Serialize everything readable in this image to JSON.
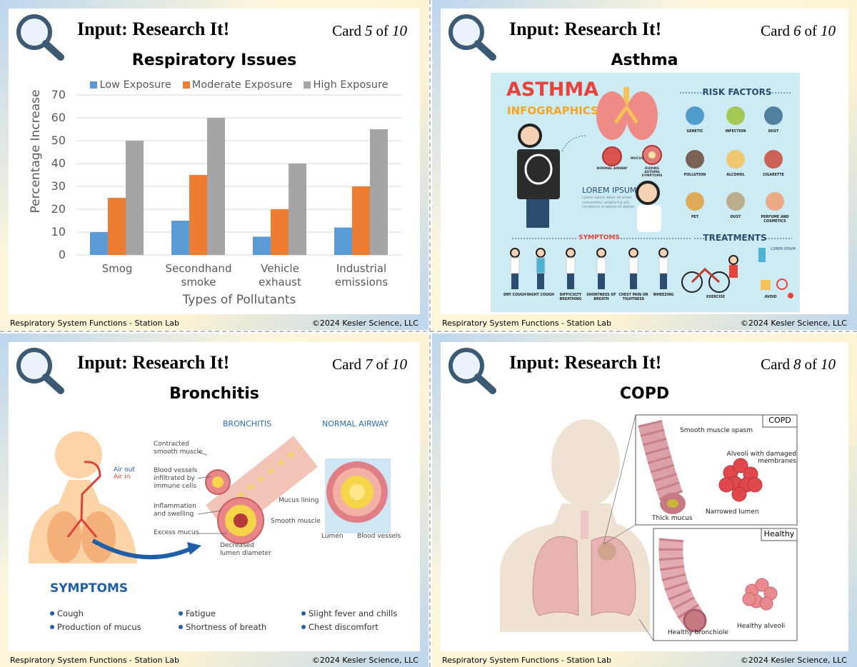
{
  "cards": [
    {
      "header": "Input: Research It!",
      "card_label": {
        "word": "Card",
        "number": "5",
        "of": "of",
        "total": "10"
      },
      "title": "Respiratory Issues",
      "chart_data": {
        "type": "bar",
        "categories": [
          "Smog",
          "Secondhand smoke",
          "Vehicle exhaust",
          "Industrial emissions"
        ],
        "series": [
          {
            "name": "Low Exposure",
            "color": "#5b9bd5",
            "values": [
              10,
              15,
              8,
              12
            ]
          },
          {
            "name": "Moderate Exposure",
            "color": "#ed7d31",
            "values": [
              25,
              35,
              20,
              30
            ]
          },
          {
            "name": "High Exposure",
            "color": "#a5a5a5",
            "values": [
              50,
              60,
              40,
              55
            ]
          }
        ],
        "ylim": [
          0,
          70
        ],
        "yticks": [
          0,
          10,
          20,
          30,
          40,
          50,
          60,
          70
        ],
        "ylabel": "Percentage Increase",
        "xlabel": "Types of Pollutants",
        "grid": true,
        "legend": "top"
      },
      "footer": {
        "left": "Respiratory System Functions - Station Lab",
        "right": "©2024 Kesler Science, LLC"
      }
    },
    {
      "header": "Input: Research It!",
      "card_label": {
        "word": "Card",
        "number": "6",
        "of": "of",
        "total": "10"
      },
      "title": "Asthma",
      "infographic": {
        "title": [
          "ASTHMA",
          "INFOGRAPHICS"
        ],
        "airway": [
          "NORMAL AIRWAY",
          "MUCUS",
          "DURING ASTHMA SYMPTOMS"
        ],
        "lorem_heading": "LOREM IPSUM",
        "lorem_text": "Lorem ipsum dolor sit amet, consectetur adipiscing elit, incididunt ut labore et dolore",
        "risk_heading": "RISK FACTORS",
        "risk_factors": [
          "GENETIC",
          "INFECTION",
          "DUST",
          "POLLUTION",
          "ALCOHOL",
          "CIGARETTE",
          "PET",
          "DUST",
          "PERFUME AND COSMETICS"
        ],
        "symptoms_heading": "SYMPTOMS",
        "symptoms": [
          "DRY COUGH",
          "NIGHT COUGH",
          "DIFFICULTY BREATHING",
          "SHORTNESS OF BREATH",
          "CHEST PAIN OR TIGHTNESS",
          "WHEEZING"
        ],
        "treatments_heading": "TREATMENTS",
        "treatments": [
          "EXERCISE",
          "AVOID"
        ],
        "treatment_note": "LOREM IPSUM"
      },
      "footer": {
        "left": "Respiratory System Functions - Station Lab",
        "right": "©2024 Kesler Science, LLC"
      }
    },
    {
      "header": "Input: Research It!",
      "card_label": {
        "word": "Card",
        "number": "7",
        "of": "of",
        "total": "10"
      },
      "title": "Bronchitis",
      "diagram": {
        "bronchitis_heading": "BRONCHITIS",
        "normal_heading": "NORMAL AIRWAY",
        "air": [
          "Air out",
          "Air in"
        ],
        "bronchitis_labels": [
          "Contracted smooth muscle",
          "Blood vessels infiltrated by immune cells",
          "Inflammation and swelling",
          "Excess mucus",
          "Decreased lumen diameter"
        ],
        "normal_labels": [
          "Mucus lining",
          "Smooth muscle",
          "Lumen",
          "Blood vessels"
        ],
        "symptoms_heading": "SYMPTOMS",
        "symptoms": [
          "Cough",
          "Production of mucus",
          "Fatigue",
          "Shortness of breath",
          "Slight fever and chills",
          "Chest discomfort"
        ]
      },
      "footer": {
        "left": "Respiratory System Functions - Station Lab",
        "right": "©2024 Kesler Science, LLC"
      }
    },
    {
      "header": "Input: Research It!",
      "card_label": {
        "word": "Card",
        "number": "8",
        "of": "of",
        "total": "10"
      },
      "title": "COPD",
      "diagram": {
        "copd_heading": "COPD",
        "copd_labels": [
          "Smooth muscle spasm",
          "Alveoli with damaged membranes",
          "Thick mucus",
          "Narrowed lumen"
        ],
        "healthy_heading": "Healthy",
        "healthy_labels": [
          "Healthy bronchiole",
          "Healthy alveoli"
        ]
      },
      "footer": {
        "left": "Respiratory System Functions - Station Lab",
        "right": "©2024 Kesler Science, LLC"
      }
    }
  ]
}
